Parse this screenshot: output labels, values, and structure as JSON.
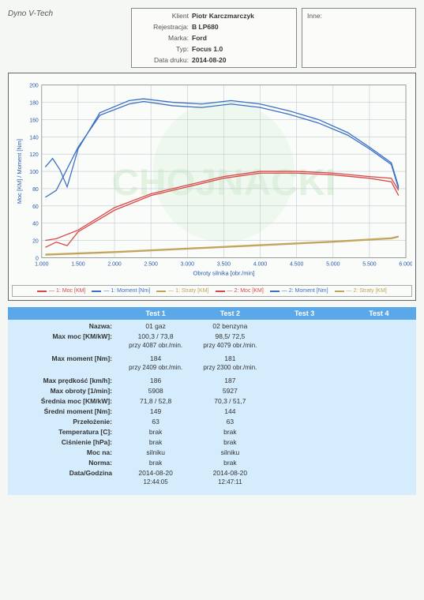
{
  "title": "Dyno V-Tech",
  "info": {
    "klient_label": "Klient",
    "klient": "Piotr Karczmarczyk",
    "rejestracja_label": "Rejestracja:",
    "rejestracja": "B LP680",
    "marka_label": "Marka:",
    "marka": "Ford",
    "typ_label": "Typ:",
    "typ": "Focus 1.0",
    "data_druku_label": "Data druku:",
    "data_druku": "2014-08-20",
    "inne_label": "Inne:"
  },
  "chart": {
    "ylabel": "Moc [KM] / Moment [Nm]",
    "xlabel": "Obroty silnika [obr./min]",
    "ylim": [
      0,
      200
    ],
    "ytick_step": 20,
    "xlim": [
      1000,
      6000
    ],
    "xtick_step": 500,
    "xticks": [
      "1.000",
      "1.500",
      "2.000",
      "2.500",
      "3.000",
      "3.500",
      "4.000",
      "4.500",
      "5.000",
      "5.500",
      "6.000"
    ],
    "grid_color": "#c0c8d0",
    "background": "#fafcf9",
    "watermark_green": "#d8efd8",
    "watermark_circle": "#e8f5e8",
    "series": {
      "moc1": {
        "color": "#d94848",
        "label": "1: Moc [KM]",
        "points": [
          [
            1050,
            12
          ],
          [
            1200,
            18
          ],
          [
            1350,
            14
          ],
          [
            1500,
            30
          ],
          [
            2000,
            55
          ],
          [
            2500,
            72
          ],
          [
            3000,
            82
          ],
          [
            3500,
            92
          ],
          [
            4000,
            98
          ],
          [
            4500,
            98
          ],
          [
            5000,
            96
          ],
          [
            5500,
            92
          ],
          [
            5800,
            88
          ],
          [
            5900,
            72
          ]
        ]
      },
      "moment1": {
        "color": "#3a6fc4",
        "label": "1: Moment [Nm]",
        "points": [
          [
            1050,
            105
          ],
          [
            1150,
            115
          ],
          [
            1250,
            102
          ],
          [
            1350,
            82
          ],
          [
            1500,
            126
          ],
          [
            1800,
            168
          ],
          [
            2200,
            182
          ],
          [
            2400,
            184
          ],
          [
            2800,
            180
          ],
          [
            3200,
            178
          ],
          [
            3600,
            182
          ],
          [
            4000,
            178
          ],
          [
            4400,
            170
          ],
          [
            4800,
            160
          ],
          [
            5200,
            145
          ],
          [
            5500,
            128
          ],
          [
            5800,
            110
          ],
          [
            5900,
            82
          ]
        ]
      },
      "straty1": {
        "color": "#c2a35a",
        "label": "1: Straty [KM]",
        "points": [
          [
            1050,
            3
          ],
          [
            2000,
            6
          ],
          [
            3000,
            10
          ],
          [
            4000,
            14
          ],
          [
            5000,
            18
          ],
          [
            5800,
            22
          ],
          [
            5900,
            24
          ]
        ]
      },
      "moc2": {
        "color": "#d94848",
        "label": "2: Moc [KM]",
        "points": [
          [
            1050,
            20
          ],
          [
            1200,
            22
          ],
          [
            1500,
            32
          ],
          [
            2000,
            58
          ],
          [
            2500,
            74
          ],
          [
            3000,
            84
          ],
          [
            3500,
            94
          ],
          [
            4000,
            100
          ],
          [
            4500,
            100
          ],
          [
            5000,
            98
          ],
          [
            5500,
            94
          ],
          [
            5800,
            92
          ],
          [
            5900,
            78
          ]
        ]
      },
      "moment2": {
        "color": "#3a6fc4",
        "label": "2: Moment [Nm]",
        "points": [
          [
            1050,
            70
          ],
          [
            1200,
            78
          ],
          [
            1500,
            128
          ],
          [
            1800,
            165
          ],
          [
            2200,
            178
          ],
          [
            2400,
            181
          ],
          [
            2800,
            176
          ],
          [
            3200,
            174
          ],
          [
            3600,
            178
          ],
          [
            4000,
            174
          ],
          [
            4400,
            166
          ],
          [
            4800,
            156
          ],
          [
            5200,
            142
          ],
          [
            5500,
            126
          ],
          [
            5800,
            108
          ],
          [
            5900,
            80
          ]
        ]
      },
      "straty2": {
        "color": "#c2a35a",
        "label": "2: Straty [KM]",
        "points": [
          [
            1050,
            4
          ],
          [
            2000,
            7
          ],
          [
            3000,
            11
          ],
          [
            4000,
            15
          ],
          [
            5000,
            19
          ],
          [
            5800,
            23
          ],
          [
            5900,
            25
          ]
        ]
      }
    }
  },
  "results": {
    "header": {
      "test1": "Test 1",
      "test2": "Test 2",
      "test3": "Test 3",
      "test4": "Test 4"
    },
    "rows": [
      {
        "label": "Nazwa:",
        "t1": "01 gaz",
        "t2": "02 benzyna"
      },
      {
        "label": "Max moc [KM/kW]:",
        "t1": "100,3 / 73,8",
        "t1b": "przy 4087 obr./min.",
        "t2": "98,5/ 72,5",
        "t2b": "przy 4079 obr./min.",
        "tall": true
      },
      {
        "label": "Max moment [Nm]:",
        "t1": "184",
        "t1b": "przy 2409 obr./min.",
        "t2": "181",
        "t2b": "przy 2300 obr./min.",
        "tall": true
      },
      {
        "label": "Max prędkość [km/h]:",
        "t1": "186",
        "t2": "187"
      },
      {
        "label": "Max obroty [1/min]:",
        "t1": "5908",
        "t2": "5927"
      },
      {
        "label": "Średnia moc [KM/kW]:",
        "t1": "71,8 / 52,8",
        "t2": "70,3 / 51,7"
      },
      {
        "label": "Średni moment [Nm]:",
        "t1": "149",
        "t2": "144"
      },
      {
        "label": "Przełożenie:",
        "t1": "63",
        "t2": "63"
      },
      {
        "label": "Temperatura [C]:",
        "t1": "brak",
        "t2": "brak"
      },
      {
        "label": "Ciśnienie [hPa]:",
        "t1": "brak",
        "t2": "brak"
      },
      {
        "label": "Moc na:",
        "t1": "silniku",
        "t2": "silniku"
      },
      {
        "label": "Norma:",
        "t1": "brak",
        "t2": "brak"
      },
      {
        "label": "Data/Godzina",
        "t1": "2014-08-20",
        "t1b": "12:44:05",
        "t2": "2014-08-20",
        "t2b": "12:47:11",
        "tall": true
      }
    ]
  }
}
